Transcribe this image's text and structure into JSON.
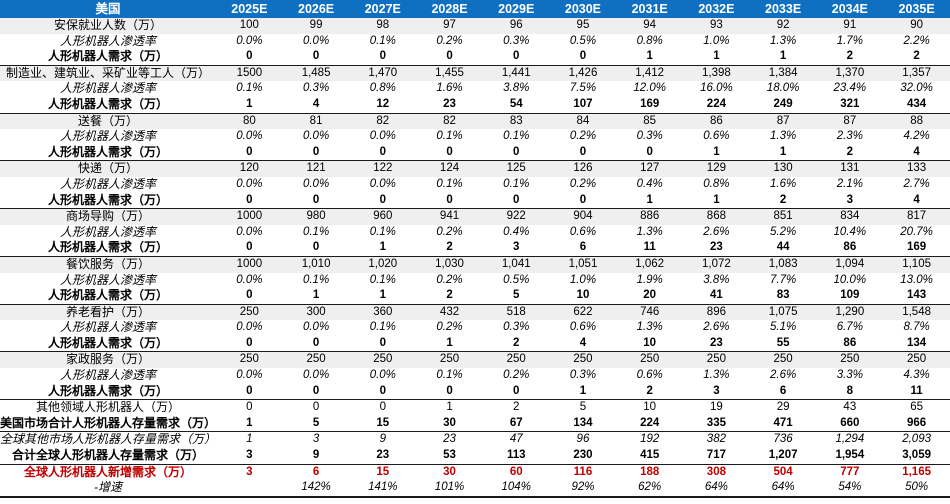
{
  "header": {
    "title": "美国",
    "years": [
      "2025E",
      "2026E",
      "2027E",
      "2028E",
      "2029E",
      "2030E",
      "2031E",
      "2032E",
      "2033E",
      "2034E",
      "2035E"
    ]
  },
  "colors": {
    "header_bg": "#0f70c2",
    "header_text": "#ffffff",
    "band_bg": "#efefef",
    "highlight_red": "#c00000",
    "text": "#000000",
    "separator": "#1a1a1a"
  },
  "rows": [
    {
      "label": "安保就业人数（万）",
      "style": "cat",
      "separator": false,
      "values": [
        "100",
        "99",
        "98",
        "97",
        "96",
        "95",
        "94",
        "93",
        "92",
        "91",
        "90"
      ]
    },
    {
      "label": "人形机器人渗透率",
      "style": "rate",
      "separator": false,
      "values": [
        "0.0%",
        "0.0%",
        "0.1%",
        "0.2%",
        "0.3%",
        "0.5%",
        "0.8%",
        "1.0%",
        "1.3%",
        "1.7%",
        "2.2%"
      ]
    },
    {
      "label": "人形机器人需求（万）",
      "style": "demand",
      "separator": true,
      "values": [
        "0",
        "0",
        "0",
        "0",
        "0",
        "0",
        "1",
        "1",
        "1",
        "2",
        "2"
      ]
    },
    {
      "label": "制造业、建筑业、采矿业等工人（万）",
      "style": "cat",
      "separator": false,
      "values": [
        "1500",
        "1,485",
        "1,470",
        "1,455",
        "1,441",
        "1,426",
        "1,412",
        "1,398",
        "1,384",
        "1,370",
        "1,357"
      ]
    },
    {
      "label": "人形机器人渗透率",
      "style": "rate",
      "separator": false,
      "values": [
        "0.1%",
        "0.3%",
        "0.8%",
        "1.6%",
        "3.8%",
        "7.5%",
        "12.0%",
        "16.0%",
        "18.0%",
        "23.4%",
        "32.0%"
      ]
    },
    {
      "label": "人形机器人需求（万）",
      "style": "demand",
      "separator": true,
      "values": [
        "1",
        "4",
        "12",
        "23",
        "54",
        "107",
        "169",
        "224",
        "249",
        "321",
        "434"
      ]
    },
    {
      "label": "送餐（万）",
      "style": "cat",
      "separator": false,
      "values": [
        "80",
        "81",
        "82",
        "82",
        "83",
        "84",
        "85",
        "86",
        "87",
        "87",
        "88"
      ]
    },
    {
      "label": "人形机器人渗透率",
      "style": "rate",
      "separator": false,
      "values": [
        "0.0%",
        "0.0%",
        "0.0%",
        "0.1%",
        "0.1%",
        "0.2%",
        "0.3%",
        "0.6%",
        "1.3%",
        "2.3%",
        "4.2%"
      ]
    },
    {
      "label": "人形机器人需求（万）",
      "style": "demand",
      "separator": true,
      "values": [
        "0",
        "0",
        "0",
        "0",
        "0",
        "0",
        "0",
        "1",
        "1",
        "2",
        "4"
      ]
    },
    {
      "label": "快递（万）",
      "style": "cat",
      "separator": false,
      "values": [
        "120",
        "121",
        "122",
        "124",
        "125",
        "126",
        "127",
        "129",
        "130",
        "131",
        "133"
      ]
    },
    {
      "label": "人形机器人渗透率",
      "style": "rate",
      "separator": false,
      "values": [
        "0.0%",
        "0.0%",
        "0.0%",
        "0.1%",
        "0.1%",
        "0.2%",
        "0.4%",
        "0.8%",
        "1.6%",
        "2.1%",
        "2.7%"
      ]
    },
    {
      "label": "人形机器人需求（万）",
      "style": "demand",
      "separator": true,
      "values": [
        "0",
        "0",
        "0",
        "0",
        "0",
        "0",
        "1",
        "1",
        "2",
        "3",
        "4"
      ]
    },
    {
      "label": "商场导购（万）",
      "style": "cat",
      "separator": false,
      "values": [
        "1000",
        "980",
        "960",
        "941",
        "922",
        "904",
        "886",
        "868",
        "851",
        "834",
        "817"
      ]
    },
    {
      "label": "人形机器人渗透率",
      "style": "rate",
      "separator": false,
      "values": [
        "0.0%",
        "0.1%",
        "0.1%",
        "0.2%",
        "0.4%",
        "0.6%",
        "1.3%",
        "2.6%",
        "5.2%",
        "10.4%",
        "20.7%"
      ]
    },
    {
      "label": "人形机器人需求（万）",
      "style": "demand",
      "separator": true,
      "values": [
        "0",
        "0",
        "1",
        "2",
        "3",
        "6",
        "11",
        "23",
        "44",
        "86",
        "169"
      ]
    },
    {
      "label": "餐饮服务（万）",
      "style": "cat",
      "separator": false,
      "values": [
        "1000",
        "1,010",
        "1,020",
        "1,030",
        "1,041",
        "1,051",
        "1,062",
        "1,072",
        "1,083",
        "1,094",
        "1,105"
      ]
    },
    {
      "label": "人形机器人渗透率",
      "style": "rate",
      "separator": false,
      "values": [
        "0.0%",
        "0.1%",
        "0.1%",
        "0.2%",
        "0.5%",
        "1.0%",
        "1.9%",
        "3.8%",
        "7.7%",
        "10.0%",
        "13.0%"
      ]
    },
    {
      "label": "人形机器人需求（万）",
      "style": "demand",
      "separator": true,
      "values": [
        "0",
        "1",
        "1",
        "2",
        "5",
        "10",
        "20",
        "41",
        "83",
        "109",
        "143"
      ]
    },
    {
      "label": "养老看护（万）",
      "style": "cat",
      "separator": false,
      "values": [
        "250",
        "300",
        "360",
        "432",
        "518",
        "622",
        "746",
        "896",
        "1,075",
        "1,290",
        "1,548"
      ]
    },
    {
      "label": "人形机器人渗透率",
      "style": "rate",
      "separator": false,
      "values": [
        "0.0%",
        "0.0%",
        "0.1%",
        "0.2%",
        "0.3%",
        "0.6%",
        "1.3%",
        "2.6%",
        "5.1%",
        "6.7%",
        "8.7%"
      ]
    },
    {
      "label": "人形机器人需求（万）",
      "style": "demand",
      "separator": true,
      "values": [
        "0",
        "0",
        "0",
        "1",
        "2",
        "4",
        "10",
        "23",
        "55",
        "86",
        "134"
      ]
    },
    {
      "label": "家政服务（万）",
      "style": "cat",
      "separator": false,
      "values": [
        "250",
        "250",
        "250",
        "250",
        "250",
        "250",
        "250",
        "250",
        "250",
        "250",
        "250"
      ]
    },
    {
      "label": "人形机器人渗透率",
      "style": "rate",
      "separator": false,
      "values": [
        "0.0%",
        "0.0%",
        "0.0%",
        "0.1%",
        "0.2%",
        "0.3%",
        "0.6%",
        "1.3%",
        "2.6%",
        "3.3%",
        "4.3%"
      ]
    },
    {
      "label": "人形机器人需求（万）",
      "style": "demand",
      "separator": true,
      "values": [
        "0",
        "0",
        "0",
        "0",
        "0",
        "1",
        "2",
        "3",
        "6",
        "8",
        "11"
      ]
    },
    {
      "label": "其他领域人形机器人（万）",
      "style": "plain",
      "separator": false,
      "values": [
        "0",
        "0",
        "0",
        "1",
        "2",
        "5",
        "10",
        "19",
        "29",
        "43",
        "65"
      ]
    },
    {
      "label": "美国市场合计人形机器人存量需求（万）",
      "style": "bold-row",
      "separator": true,
      "values": [
        "1",
        "5",
        "15",
        "30",
        "67",
        "134",
        "224",
        "335",
        "471",
        "660",
        "966"
      ]
    },
    {
      "label": "全球其他市场人形机器人存量需求（万）",
      "style": "italic-row",
      "separator": false,
      "values": [
        "1",
        "3",
        "9",
        "23",
        "47",
        "96",
        "192",
        "382",
        "736",
        "1,294",
        "2,093"
      ]
    },
    {
      "label": "合计全球人形机器人存量需求（万）",
      "style": "bold-row",
      "separator": true,
      "values": [
        "3",
        "9",
        "23",
        "53",
        "113",
        "230",
        "415",
        "717",
        "1,207",
        "1,954",
        "3,059"
      ]
    },
    {
      "label": "全球人形机器人新增需求（万）",
      "style": "red-row",
      "separator": false,
      "values": [
        "3",
        "6",
        "15",
        "30",
        "60",
        "116",
        "188",
        "308",
        "504",
        "777",
        "1,165"
      ]
    },
    {
      "label": "-增速",
      "style": "growth",
      "separator": true,
      "values": [
        "",
        "142%",
        "141%",
        "101%",
        "104%",
        "92%",
        "62%",
        "64%",
        "64%",
        "54%",
        "50%"
      ]
    }
  ]
}
